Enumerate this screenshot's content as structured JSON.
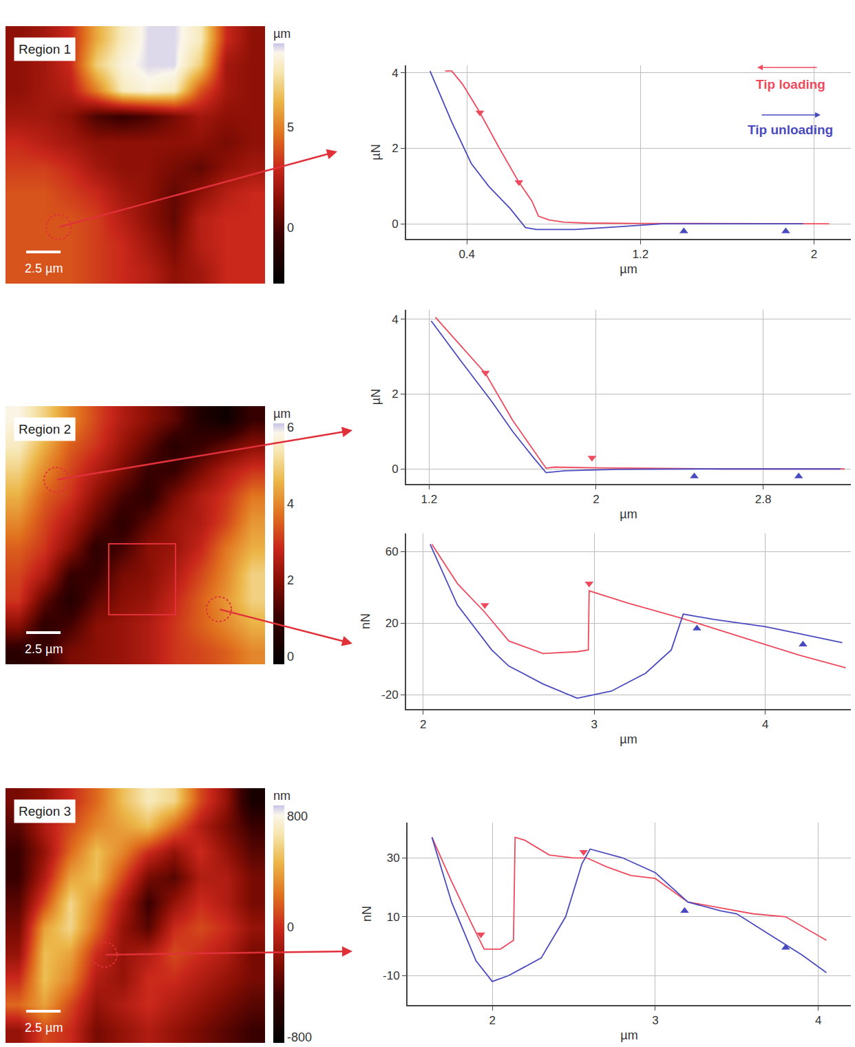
{
  "chart_data": [
    {
      "type": "heatmap",
      "title": "Region 1",
      "scale_label": "2.5 µm",
      "colorbar_title": "µm",
      "zlim": [
        -2.8,
        9.2
      ],
      "zticks": [
        0,
        5
      ],
      "z": [
        [
          1.5,
          2,
          3,
          6,
          8,
          9,
          9,
          8,
          3,
          1.5
        ],
        [
          1.5,
          2,
          3,
          7,
          8.5,
          9,
          9,
          7,
          2,
          1.5
        ],
        [
          1.5,
          2,
          2.5,
          5,
          8,
          8.5,
          8,
          4,
          2,
          1.5
        ],
        [
          2,
          2,
          1.5,
          0,
          -0.5,
          0,
          1,
          2,
          1.5,
          1.5
        ],
        [
          3,
          2.5,
          2,
          1.5,
          1.5,
          1.5,
          1.5,
          1.5,
          1,
          1.5
        ],
        [
          3.5,
          3.5,
          3,
          2,
          1.5,
          1.5,
          1,
          0.5,
          1.5,
          2
        ],
        [
          4,
          4,
          3.5,
          3,
          2,
          1.5,
          0.5,
          1.5,
          2.5,
          3
        ],
        [
          4,
          4,
          4,
          3.5,
          2.5,
          1.5,
          0.5,
          2.5,
          3,
          3
        ],
        [
          4,
          4,
          4,
          3.5,
          3,
          2,
          1,
          2.5,
          3,
          3
        ],
        [
          4,
          4,
          4,
          3.5,
          3,
          2.5,
          1.5,
          2,
          3,
          3
        ]
      ]
    },
    {
      "type": "heatmap",
      "title": "Region 2",
      "scale_label": "2.5 µm",
      "colorbar_title": "µm",
      "zlim": [
        -0.2,
        6.1
      ],
      "zticks": [
        0,
        2,
        4,
        6
      ],
      "z": [
        [
          5.8,
          5,
          4,
          3.2,
          2.5,
          2,
          1.5,
          0.5,
          0.1,
          1
        ],
        [
          5.5,
          4.5,
          3.5,
          3,
          2.2,
          1.5,
          0.7,
          1,
          1.5,
          2
        ],
        [
          5,
          4,
          3.2,
          2.5,
          1.8,
          1,
          1,
          1.8,
          2.5,
          3
        ],
        [
          4.5,
          3.5,
          3,
          2,
          1.2,
          0.8,
          1.8,
          2.5,
          3,
          3.8
        ],
        [
          4,
          3.2,
          2.5,
          1.5,
          0.8,
          1.5,
          2.2,
          2.5,
          3.2,
          4.2
        ],
        [
          3.5,
          3,
          2,
          0.8,
          1.2,
          2,
          2.2,
          2.8,
          3.8,
          4.5
        ],
        [
          3.2,
          2.5,
          1,
          1,
          1.8,
          2,
          2.5,
          3.2,
          4,
          5
        ],
        [
          3,
          1.5,
          0.6,
          1.5,
          2,
          2.2,
          2.8,
          3.5,
          4.2,
          5
        ],
        [
          2,
          0.8,
          1.2,
          2,
          2.2,
          2.5,
          3,
          3.5,
          4,
          4.5
        ],
        [
          0.7,
          1,
          1.8,
          2,
          2.2,
          2.5,
          3,
          3.2,
          3.5,
          4
        ]
      ]
    },
    {
      "type": "heatmap",
      "title": "Region 3",
      "scale_label": "2.5 µm",
      "colorbar_title": "nm",
      "zlim": [
        -840,
        880
      ],
      "zticks": [
        -800,
        0,
        800
      ],
      "z": [
        [
          -300,
          -200,
          0,
          200,
          500,
          700,
          600,
          100,
          -200,
          -700
        ],
        [
          -400,
          -100,
          100,
          300,
          400,
          500,
          200,
          -100,
          -300,
          -500
        ],
        [
          -500,
          -200,
          200,
          500,
          300,
          0,
          -200,
          0,
          -200,
          -400
        ],
        [
          -500,
          -100,
          400,
          500,
          100,
          -300,
          -400,
          -100,
          -100,
          -300
        ],
        [
          -400,
          100,
          600,
          300,
          -100,
          -500,
          -200,
          0,
          -100,
          -300
        ],
        [
          -300,
          400,
          600,
          200,
          -200,
          -400,
          0,
          100,
          0,
          -200
        ],
        [
          -200,
          500,
          400,
          0,
          -200,
          -100,
          100,
          0,
          -100,
          -300
        ],
        [
          0,
          500,
          300,
          -100,
          -200,
          0,
          0,
          -100,
          -200,
          -300
        ],
        [
          200,
          400,
          100,
          -200,
          -100,
          0,
          -100,
          -200,
          -300,
          -400
        ],
        [
          -200,
          100,
          0,
          -300,
          -200,
          -100,
          -200,
          -300,
          -400,
          -500
        ]
      ]
    },
    {
      "type": "line",
      "x_label": "µm",
      "y_label": "µN",
      "grid": true,
      "legend": "upper right",
      "xlim": [
        0.12,
        2.17
      ],
      "xticks": [
        0.4,
        1.2,
        2
      ],
      "ylim": [
        -0.4,
        4.2
      ],
      "yticks": [
        0,
        2,
        4
      ],
      "series": [
        {
          "name": "Tip loading",
          "color": "#ee4a5e",
          "marker": "triangle-down",
          "x": [
            2.07,
            1.6,
            1.2,
            0.95,
            0.85,
            0.78,
            0.73,
            0.7,
            0.64,
            0.55,
            0.46,
            0.38,
            0.33,
            0.3
          ],
          "values": [
            0,
            0,
            0.01,
            0.02,
            0.04,
            0.1,
            0.2,
            0.6,
            1.1,
            2.0,
            2.95,
            3.7,
            4.05,
            4.05
          ],
          "marker_x": [
            0.46,
            0.64
          ],
          "marker_values": [
            2.95,
            1.1
          ]
        },
        {
          "name": "Tip unloading",
          "color": "#4a4ac0",
          "marker": "triangle-up",
          "x": [
            0.23,
            0.33,
            0.42,
            0.5,
            0.6,
            0.67,
            0.72,
            0.9,
            1.1,
            1.3,
            1.95
          ],
          "values": [
            4.05,
            2.7,
            1.6,
            1.0,
            0.4,
            -0.1,
            -0.15,
            -0.15,
            -0.08,
            0,
            0
          ],
          "marker_x": [
            1.4,
            1.87
          ],
          "marker_values": [
            -0.2,
            -0.2
          ]
        }
      ]
    },
    {
      "type": "line",
      "x_label": "µm",
      "y_label": "µN",
      "grid": true,
      "xlim": [
        1.09,
        3.22
      ],
      "xticks": [
        1.2,
        2,
        2.8
      ],
      "ylim": [
        -0.4,
        4.25
      ],
      "yticks": [
        0,
        2,
        4
      ],
      "series": [
        {
          "color": "#ee4a5e",
          "marker": "triangle-down",
          "x": [
            3.19,
            2.6,
            2.0,
            1.8,
            1.76,
            1.7,
            1.6,
            1.47,
            1.35,
            1.23
          ],
          "values": [
            0,
            0,
            0.03,
            0.05,
            0.02,
            0.5,
            1.3,
            2.55,
            3.3,
            4.05
          ],
          "marker_x": [
            1.47,
            1.98
          ],
          "marker_values": [
            2.57,
            0.3
          ]
        },
        {
          "color": "#4a4ac0",
          "marker": "triangle-up",
          "x": [
            1.21,
            1.35,
            1.5,
            1.6,
            1.7,
            1.76,
            1.85,
            2.1,
            2.5,
            3.17
          ],
          "values": [
            3.95,
            2.9,
            1.8,
            1.0,
            0.3,
            -0.1,
            -0.05,
            -0.01,
            0,
            0
          ],
          "marker_x": [
            2.47,
            2.97
          ],
          "marker_values": [
            -0.2,
            -0.2
          ]
        }
      ]
    },
    {
      "type": "line",
      "x_label": "µm",
      "y_label": "nN",
      "grid": true,
      "xlim": [
        1.9,
        4.5
      ],
      "xticks": [
        2,
        3,
        4
      ],
      "ylim": [
        -28,
        70
      ],
      "yticks": [
        -20,
        20,
        60
      ],
      "series": [
        {
          "color": "#ee4a5e",
          "marker": "triangle-down",
          "x": [
            4.47,
            4.2,
            4.0,
            3.7,
            3.5,
            3.2,
            2.97,
            2.965,
            2.9,
            2.7,
            2.5,
            2.36,
            2.2,
            2.05
          ],
          "values": [
            -5,
            2,
            8,
            17,
            23,
            31,
            38,
            5,
            4,
            3,
            10,
            26,
            42,
            64
          ],
          "marker_x": [
            2.36,
            2.97
          ],
          "marker_values": [
            30,
            42
          ]
        },
        {
          "color": "#4a4ac0",
          "marker": "triangle-up",
          "x": [
            2.04,
            2.2,
            2.4,
            2.5,
            2.7,
            2.9,
            3.1,
            3.3,
            3.45,
            3.49,
            3.52,
            3.7,
            4.0,
            4.2,
            4.45
          ],
          "values": [
            64,
            30,
            5,
            -4,
            -14,
            -22,
            -18,
            -8,
            5,
            16,
            25,
            22,
            18,
            14,
            9
          ],
          "marker_x": [
            3.6,
            4.22
          ],
          "marker_values": [
            17,
            8
          ]
        }
      ]
    },
    {
      "type": "line",
      "x_label": "µm",
      "y_label": "nN",
      "grid": true,
      "xlim": [
        1.48,
        4.2
      ],
      "xticks": [
        2,
        3,
        4
      ],
      "ylim": [
        -20,
        42
      ],
      "yticks": [
        -10,
        10,
        30
      ],
      "series": [
        {
          "color": "#ee4a5e",
          "marker": "triangle-down",
          "x": [
            4.05,
            3.8,
            3.6,
            3.4,
            3.2,
            3.0,
            2.85,
            2.7,
            2.58,
            2.5,
            2.35,
            2.2,
            2.14,
            2.13,
            2.05,
            1.95,
            1.87,
            1.75,
            1.63
          ],
          "values": [
            2,
            10,
            11,
            13,
            15,
            23,
            24,
            27,
            30,
            30,
            31,
            36,
            37,
            2,
            -1,
            -1,
            8,
            22,
            37
          ],
          "marker_x": [
            1.93,
            2.56
          ],
          "marker_values": [
            4,
            32
          ]
        },
        {
          "color": "#4a4ac0",
          "marker": "triangle-up",
          "x": [
            1.63,
            1.75,
            1.9,
            2.0,
            2.1,
            2.3,
            2.45,
            2.55,
            2.6,
            2.8,
            3.0,
            3.2,
            3.4,
            3.5,
            3.7,
            3.9,
            4.05
          ],
          "values": [
            37,
            15,
            -5,
            -12,
            -10,
            -4,
            10,
            28,
            33,
            30,
            25,
            15,
            12,
            11,
            4,
            -3,
            -9
          ],
          "marker_x": [
            3.18,
            3.8
          ],
          "marker_values": [
            12,
            -0.5
          ]
        }
      ]
    }
  ]
}
